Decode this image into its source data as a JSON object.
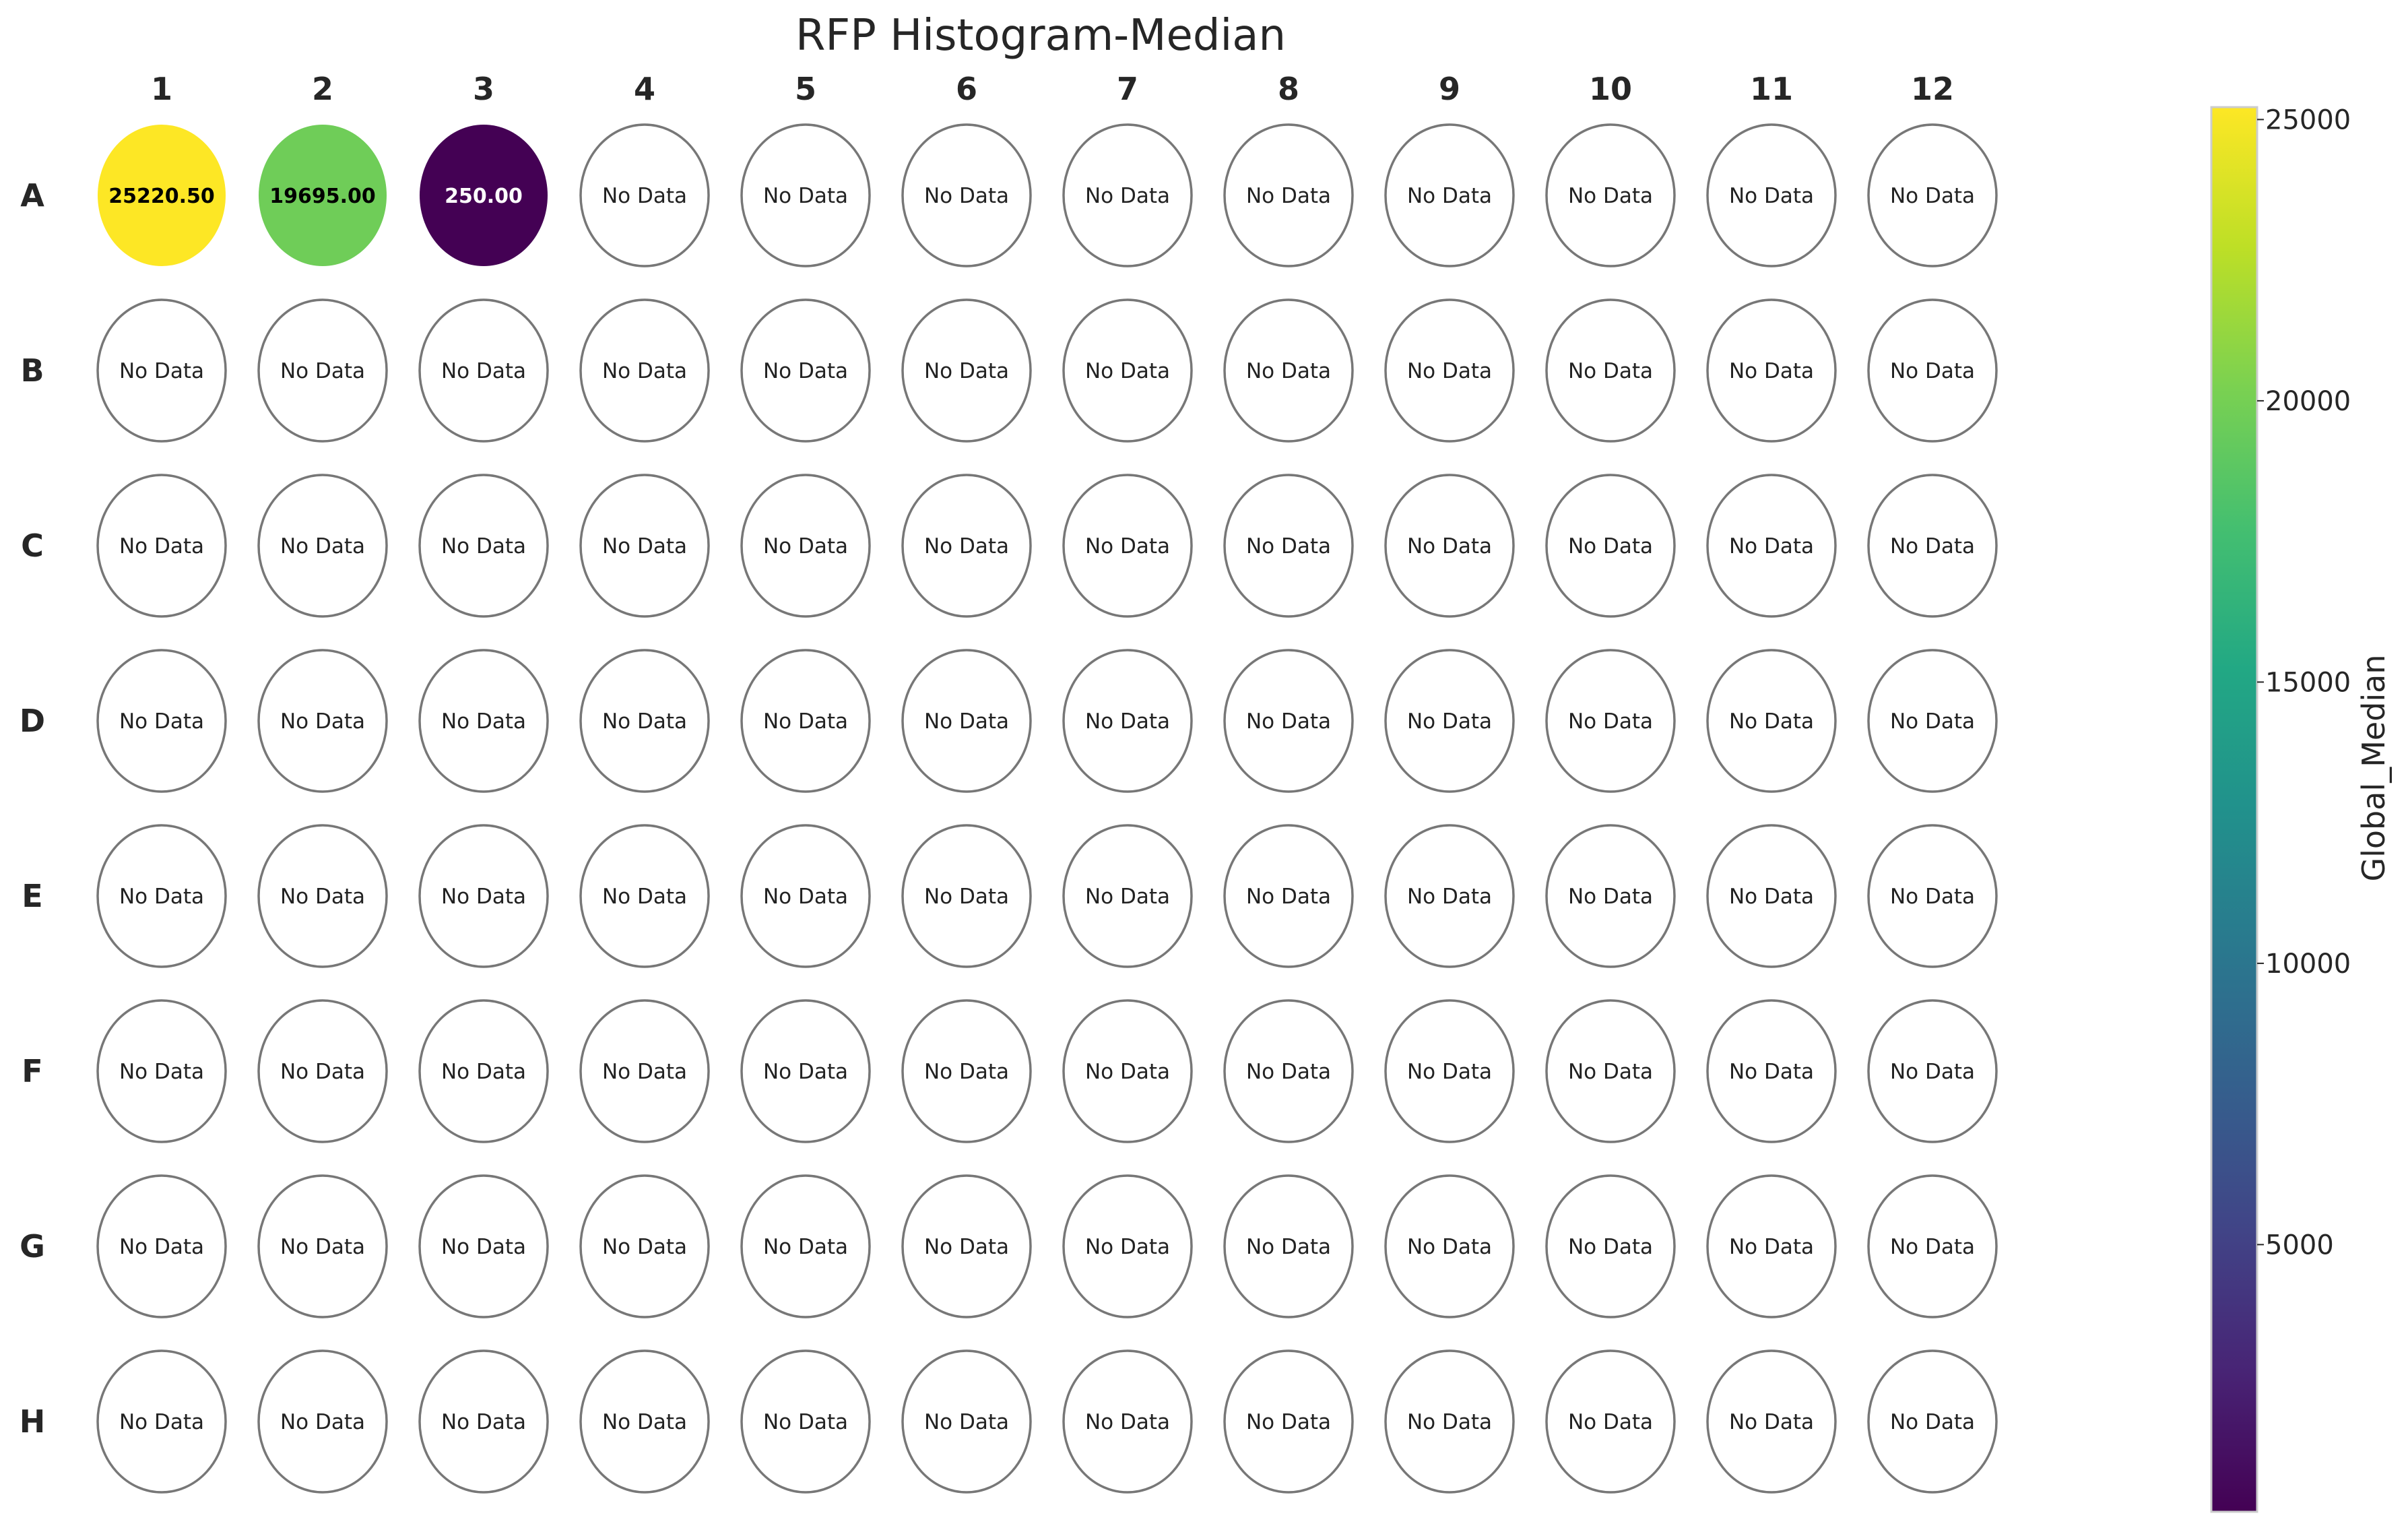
{
  "chart_data": {
    "type": "heatmap",
    "title": "RFP Histogram-Median",
    "columns": [
      "1",
      "2",
      "3",
      "4",
      "5",
      "6",
      "7",
      "8",
      "9",
      "10",
      "11",
      "12"
    ],
    "rows": [
      "A",
      "B",
      "C",
      "D",
      "E",
      "F",
      "G",
      "H"
    ],
    "values": [
      [
        25220.5,
        19695.0,
        250.0,
        null,
        null,
        null,
        null,
        null,
        null,
        null,
        null,
        null
      ],
      [
        null,
        null,
        null,
        null,
        null,
        null,
        null,
        null,
        null,
        null,
        null,
        null
      ],
      [
        null,
        null,
        null,
        null,
        null,
        null,
        null,
        null,
        null,
        null,
        null,
        null
      ],
      [
        null,
        null,
        null,
        null,
        null,
        null,
        null,
        null,
        null,
        null,
        null,
        null
      ],
      [
        null,
        null,
        null,
        null,
        null,
        null,
        null,
        null,
        null,
        null,
        null,
        null
      ],
      [
        null,
        null,
        null,
        null,
        null,
        null,
        null,
        null,
        null,
        null,
        null,
        null
      ],
      [
        null,
        null,
        null,
        null,
        null,
        null,
        null,
        null,
        null,
        null,
        null,
        null
      ],
      [
        null,
        null,
        null,
        null,
        null,
        null,
        null,
        null,
        null,
        null,
        null,
        null
      ]
    ],
    "value_labels": [
      [
        "25220.50",
        "19695.00",
        "250.00"
      ]
    ],
    "no_data_label": "No Data",
    "colorbar": {
      "label": "Global_Median",
      "colormap": "viridis",
      "range": [
        250,
        25220.5
      ],
      "ticks": [
        5000,
        10000,
        15000,
        20000,
        25000
      ]
    },
    "colors": {
      "empty_well_stroke": "#777777",
      "text": "#262626"
    },
    "grid": false,
    "legend": "colorbar-right"
  }
}
